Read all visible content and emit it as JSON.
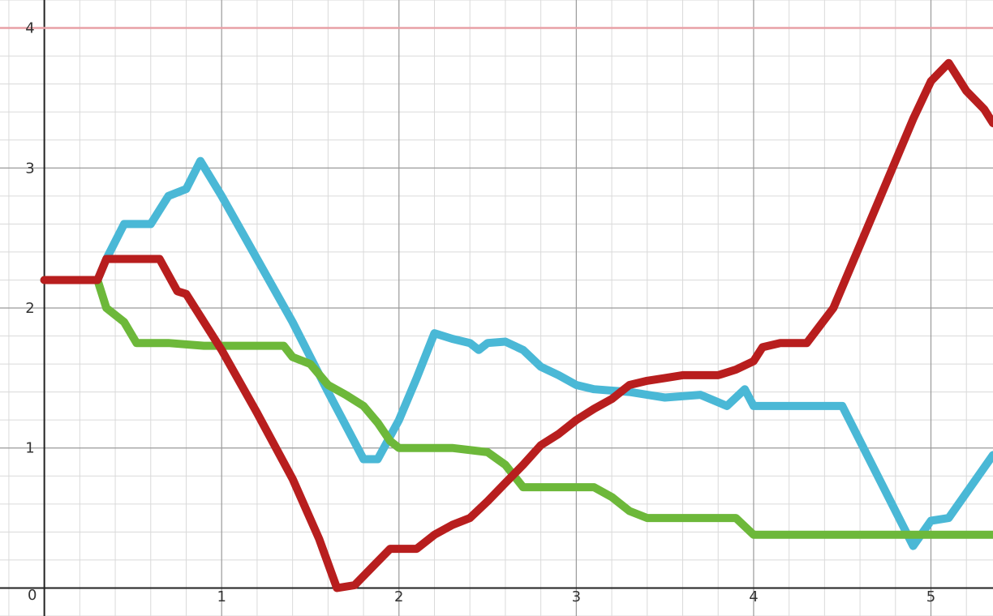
{
  "chart_data": {
    "type": "line",
    "title": "",
    "xlabel": "",
    "ylabel": "",
    "xlim": [
      -0.25,
      5.35
    ],
    "ylim": [
      -0.2,
      4.2
    ],
    "x_ticks": [
      {
        "value": 1,
        "label": "1"
      },
      {
        "value": 2,
        "label": "2"
      },
      {
        "value": 3,
        "label": "3"
      },
      {
        "value": 4,
        "label": "4"
      },
      {
        "value": 5,
        "label": "5"
      }
    ],
    "y_ticks": [
      {
        "value": 1,
        "label": "1"
      },
      {
        "value": 2,
        "label": "2"
      },
      {
        "value": 3,
        "label": "3"
      },
      {
        "value": 4,
        "label": "4"
      }
    ],
    "origin_label": "0",
    "grid": true,
    "minor_grid_divisions": 5,
    "reference_line": {
      "y": 4.0,
      "color": "#e8a0a6"
    },
    "series": [
      {
        "color": "#4ab8d6",
        "points": [
          [
            0.0,
            2.2
          ],
          [
            0.3,
            2.2
          ],
          [
            0.35,
            2.35
          ],
          [
            0.45,
            2.6
          ],
          [
            0.6,
            2.6
          ],
          [
            0.7,
            2.8
          ],
          [
            0.8,
            2.85
          ],
          [
            0.88,
            3.05
          ],
          [
            1.0,
            2.8
          ],
          [
            1.2,
            2.35
          ],
          [
            1.4,
            1.9
          ],
          [
            1.6,
            1.4
          ],
          [
            1.8,
            0.92
          ],
          [
            1.88,
            0.92
          ],
          [
            2.0,
            1.2
          ],
          [
            2.1,
            1.5
          ],
          [
            2.2,
            1.82
          ],
          [
            2.3,
            1.78
          ],
          [
            2.4,
            1.75
          ],
          [
            2.45,
            1.7
          ],
          [
            2.5,
            1.75
          ],
          [
            2.6,
            1.76
          ],
          [
            2.7,
            1.7
          ],
          [
            2.8,
            1.58
          ],
          [
            2.9,
            1.52
          ],
          [
            3.0,
            1.45
          ],
          [
            3.1,
            1.42
          ],
          [
            3.3,
            1.4
          ],
          [
            3.4,
            1.38
          ],
          [
            3.5,
            1.36
          ],
          [
            3.7,
            1.38
          ],
          [
            3.85,
            1.3
          ],
          [
            3.95,
            1.42
          ],
          [
            4.0,
            1.3
          ],
          [
            4.2,
            1.3
          ],
          [
            4.3,
            1.3
          ],
          [
            4.5,
            1.3
          ],
          [
            4.7,
            0.8
          ],
          [
            4.9,
            0.3
          ],
          [
            5.0,
            0.48
          ],
          [
            5.1,
            0.5
          ],
          [
            5.35,
            0.95
          ]
        ]
      },
      {
        "color": "#6db83a",
        "points": [
          [
            0.0,
            2.2
          ],
          [
            0.3,
            2.2
          ],
          [
            0.35,
            2.0
          ],
          [
            0.45,
            1.9
          ],
          [
            0.52,
            1.75
          ],
          [
            0.7,
            1.75
          ],
          [
            0.9,
            1.73
          ],
          [
            1.2,
            1.73
          ],
          [
            1.35,
            1.73
          ],
          [
            1.4,
            1.65
          ],
          [
            1.5,
            1.6
          ],
          [
            1.6,
            1.45
          ],
          [
            1.7,
            1.38
          ],
          [
            1.8,
            1.3
          ],
          [
            1.88,
            1.18
          ],
          [
            1.95,
            1.05
          ],
          [
            2.0,
            1.0
          ],
          [
            2.3,
            1.0
          ],
          [
            2.5,
            0.97
          ],
          [
            2.6,
            0.88
          ],
          [
            2.7,
            0.72
          ],
          [
            2.8,
            0.72
          ],
          [
            3.0,
            0.72
          ],
          [
            3.1,
            0.72
          ],
          [
            3.2,
            0.65
          ],
          [
            3.3,
            0.55
          ],
          [
            3.4,
            0.5
          ],
          [
            3.7,
            0.5
          ],
          [
            3.9,
            0.5
          ],
          [
            4.0,
            0.38
          ],
          [
            4.5,
            0.38
          ],
          [
            5.0,
            0.38
          ],
          [
            5.35,
            0.38
          ]
        ]
      },
      {
        "color": "#b81e1e",
        "points": [
          [
            0.0,
            2.2
          ],
          [
            0.3,
            2.2
          ],
          [
            0.35,
            2.35
          ],
          [
            0.5,
            2.35
          ],
          [
            0.65,
            2.35
          ],
          [
            0.75,
            2.12
          ],
          [
            0.8,
            2.1
          ],
          [
            1.0,
            1.7
          ],
          [
            1.2,
            1.25
          ],
          [
            1.4,
            0.78
          ],
          [
            1.55,
            0.35
          ],
          [
            1.65,
            0.0
          ],
          [
            1.75,
            0.02
          ],
          [
            1.85,
            0.15
          ],
          [
            1.95,
            0.28
          ],
          [
            2.1,
            0.28
          ],
          [
            2.2,
            0.38
          ],
          [
            2.3,
            0.45
          ],
          [
            2.4,
            0.5
          ],
          [
            2.5,
            0.62
          ],
          [
            2.6,
            0.75
          ],
          [
            2.7,
            0.88
          ],
          [
            2.8,
            1.02
          ],
          [
            2.9,
            1.1
          ],
          [
            3.0,
            1.2
          ],
          [
            3.1,
            1.28
          ],
          [
            3.2,
            1.35
          ],
          [
            3.3,
            1.45
          ],
          [
            3.4,
            1.48
          ],
          [
            3.5,
            1.5
          ],
          [
            3.6,
            1.52
          ],
          [
            3.8,
            1.52
          ],
          [
            3.9,
            1.56
          ],
          [
            4.0,
            1.62
          ],
          [
            4.05,
            1.72
          ],
          [
            4.15,
            1.75
          ],
          [
            4.3,
            1.75
          ],
          [
            4.45,
            2.0
          ],
          [
            4.6,
            2.45
          ],
          [
            4.75,
            2.9
          ],
          [
            4.9,
            3.35
          ],
          [
            5.0,
            3.62
          ],
          [
            5.1,
            3.75
          ],
          [
            5.2,
            3.55
          ],
          [
            5.3,
            3.42
          ],
          [
            5.35,
            3.32
          ]
        ]
      }
    ]
  }
}
